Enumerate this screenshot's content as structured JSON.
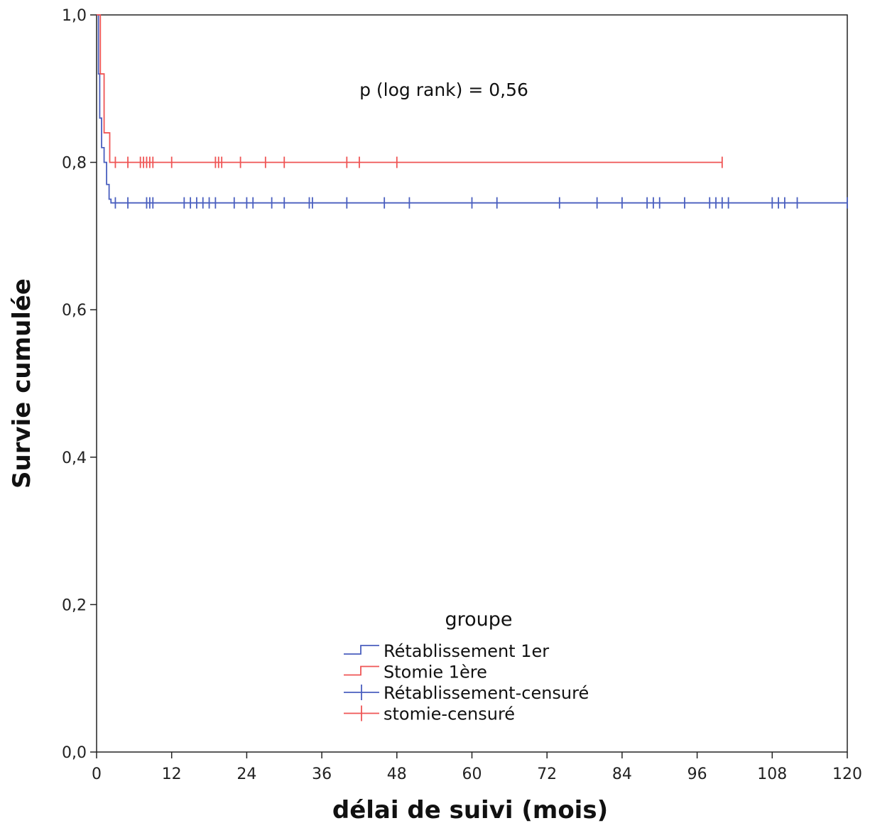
{
  "chart_data": {
    "type": "line",
    "subtype": "kaplan-meier",
    "xlabel": "délai de suivi (mois)",
    "ylabel": "Survie cumulée",
    "xlim": [
      0,
      120
    ],
    "ylim": [
      0,
      1
    ],
    "xticks": [
      0,
      12,
      24,
      36,
      48,
      60,
      72,
      84,
      96,
      108,
      120
    ],
    "yticks": [
      0,
      0.2,
      0.4,
      0.6,
      0.8,
      1.0
    ],
    "xtick_labels": [
      "0",
      "12",
      "24",
      "36",
      "48",
      "60",
      "72",
      "84",
      "96",
      "108",
      "120"
    ],
    "ytick_labels": [
      "0,0",
      "0,2",
      "0,4",
      "0,6",
      "0,8",
      "1,0"
    ],
    "grid": false,
    "annotation": "p (log rank) = 0,56",
    "legend": {
      "title": "groupe",
      "position": "bottom-center",
      "entries": [
        {
          "label": "Rétablissement 1er",
          "kind": "step",
          "color": "#4a5fbf"
        },
        {
          "label": "Stomie 1ère",
          "kind": "step",
          "color": "#ef5555"
        },
        {
          "label": "Rétablissement-censuré",
          "kind": "cross",
          "color": "#4a5fbf"
        },
        {
          "label": "stomie-censuré",
          "kind": "cross",
          "color": "#ef5555"
        }
      ]
    },
    "series": [
      {
        "name": "Rétablissement 1er",
        "color": "#4a5fbf",
        "steps": [
          [
            0,
            1.0
          ],
          [
            0.3,
            0.92
          ],
          [
            0.5,
            0.86
          ],
          [
            0.8,
            0.82
          ],
          [
            1.2,
            0.8
          ],
          [
            1.6,
            0.77
          ],
          [
            2.0,
            0.75
          ],
          [
            2.3,
            0.745
          ]
        ],
        "end_x": 120,
        "censored": [
          3,
          5,
          8,
          8.5,
          9,
          14,
          15,
          16,
          17,
          18,
          19,
          22,
          24,
          25,
          28,
          30,
          34,
          34.5,
          40,
          46,
          50,
          60,
          64,
          74,
          80,
          84,
          88,
          89,
          90,
          94,
          98,
          99,
          100,
          101,
          108,
          109,
          110,
          112,
          120
        ]
      },
      {
        "name": "Stomie 1ère",
        "color": "#ef5555",
        "steps": [
          [
            0,
            1.0
          ],
          [
            0.6,
            0.92
          ],
          [
            1.2,
            0.84
          ],
          [
            2.1,
            0.8
          ]
        ],
        "end_x": 100,
        "censored": [
          3,
          5,
          7,
          7.5,
          8,
          8.5,
          9,
          12,
          19,
          19.5,
          20,
          23,
          27,
          30,
          40,
          42,
          48,
          100
        ]
      }
    ]
  }
}
